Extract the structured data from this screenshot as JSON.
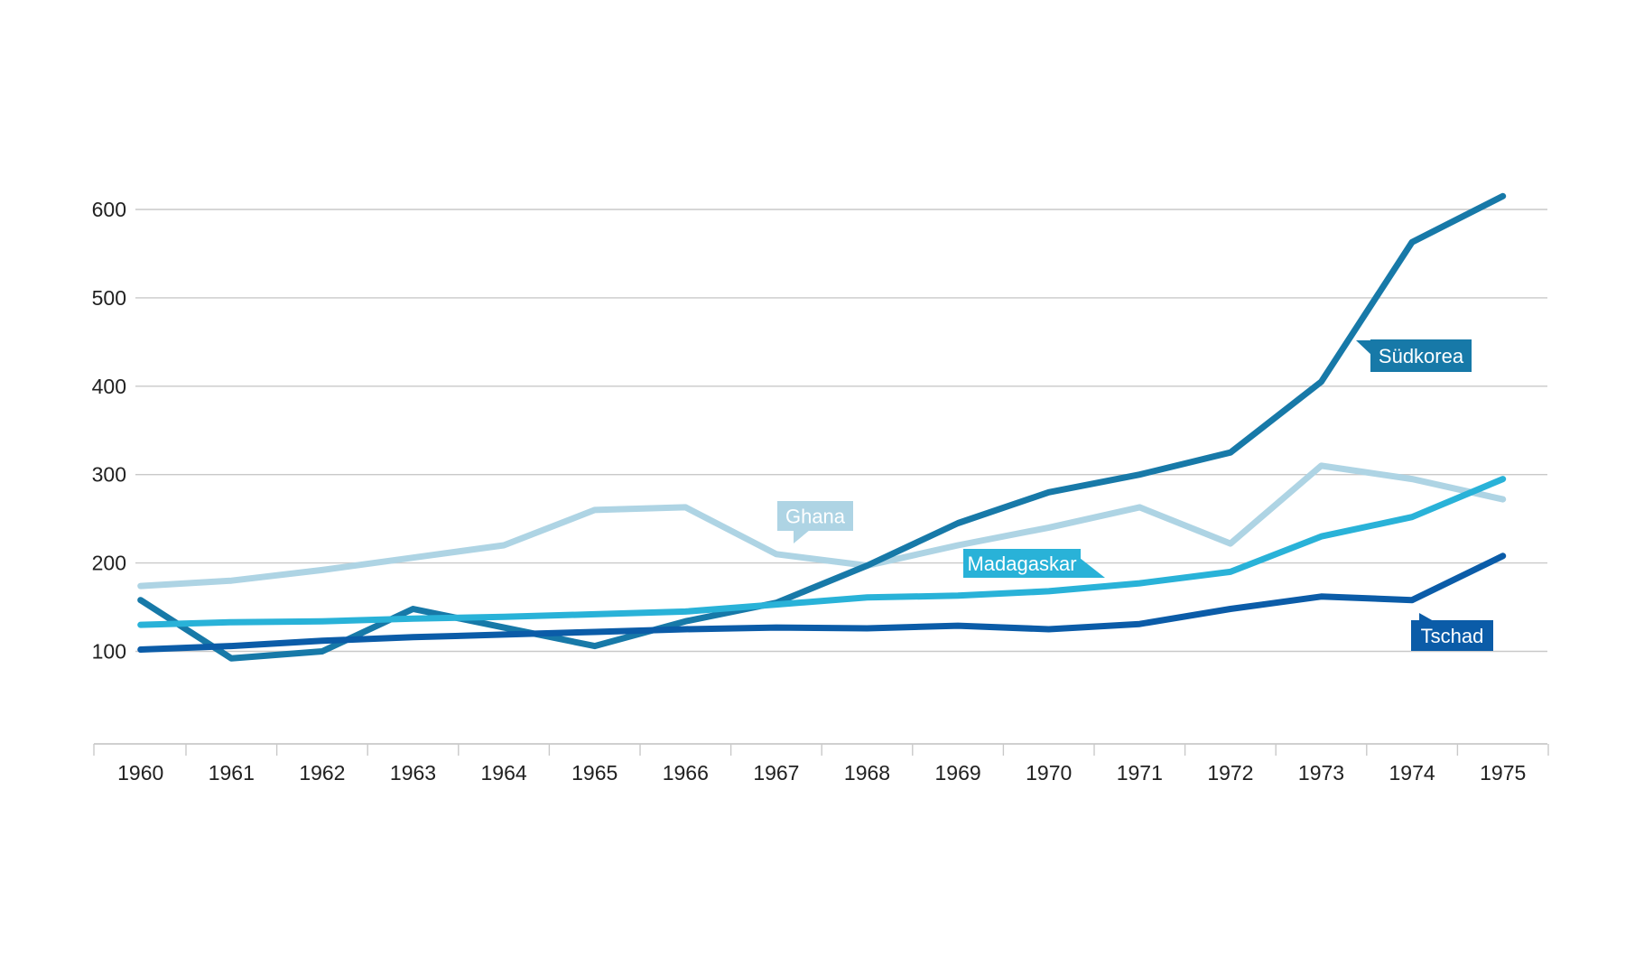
{
  "chart_data": {
    "type": "line",
    "x": [
      1960,
      1961,
      1962,
      1963,
      1964,
      1965,
      1966,
      1967,
      1968,
      1969,
      1970,
      1971,
      1972,
      1973,
      1974,
      1975
    ],
    "x_tick_labels": [
      "1960",
      "1961",
      "1962",
      "1963",
      "1964",
      "1965",
      "1966",
      "1967",
      "1968",
      "1969",
      "1970",
      "1971",
      "1972",
      "1973",
      "1974",
      "1975"
    ],
    "yticks": [
      100,
      200,
      300,
      400,
      500,
      600
    ],
    "ytick_labels": [
      "100",
      "200",
      "300",
      "400",
      "500",
      "600"
    ],
    "ylim": [
      60,
      660
    ],
    "grid": true,
    "title": "",
    "xlabel": "",
    "ylabel": "",
    "legend": "inline-flag-labels",
    "series": [
      {
        "name": "Ghana",
        "label": "Ghana",
        "color": "#AED4E4",
        "label_text_color": "#FFFFFF",
        "values": [
          174,
          180,
          192,
          206,
          220,
          260,
          263,
          210,
          197,
          220,
          240,
          263,
          222,
          310,
          295,
          272
        ]
      },
      {
        "name": "Südkorea",
        "label": "Südkorea",
        "color": "#1779A8",
        "label_text_color": "#FFFFFF",
        "values": [
          158,
          92,
          100,
          148,
          127,
          106,
          134,
          155,
          197,
          245,
          280,
          300,
          325,
          405,
          563,
          615
        ]
      },
      {
        "name": "Madagaskar",
        "label": "Madagaskar",
        "color": "#29B2D8",
        "label_text_color": "#FFFFFF",
        "values": [
          130,
          133,
          134,
          137,
          139,
          142,
          145,
          153,
          161,
          163,
          168,
          177,
          190,
          230,
          252,
          295
        ]
      },
      {
        "name": "Tschad",
        "label": "Tschad",
        "color": "#0B5CA8",
        "label_text_color": "#FFFFFF",
        "values": [
          102,
          106,
          112,
          116,
          119,
          122,
          125,
          127,
          126,
          129,
          125,
          131,
          148,
          162,
          158,
          208
        ]
      }
    ],
    "colors": {
      "grid": "#C9C9C9",
      "axis": "#C1C1C1",
      "tick": "#C9C9C9",
      "tick_text": "#212121"
    }
  }
}
